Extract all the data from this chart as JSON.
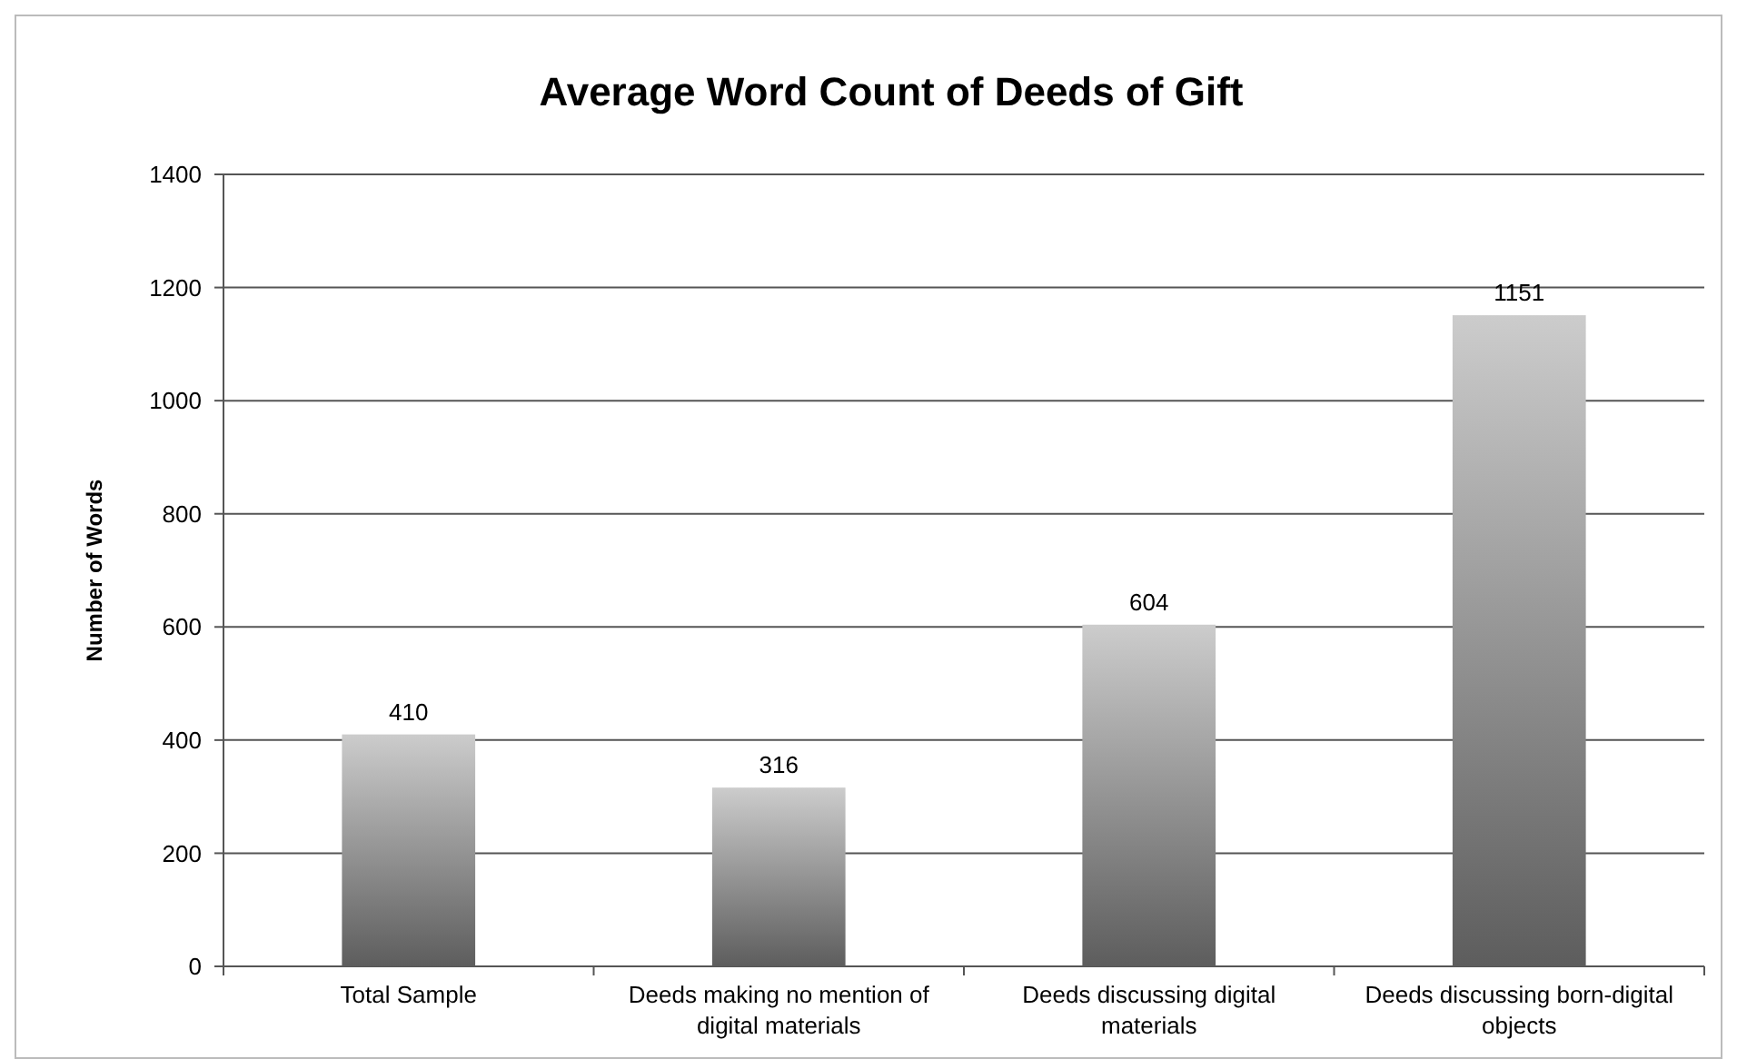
{
  "chart_data": {
    "type": "bar",
    "title": "Average Word Count of Deeds of Gift",
    "ylabel": "Number of Words",
    "categories": [
      "Total Sample",
      "Deeds making no mention of digital materials",
      "Deeds discussing digital materials",
      "Deeds discussing born-digital objects"
    ],
    "values": [
      410,
      316,
      604,
      1151
    ],
    "color": "#8a8a8a",
    "ylim": [
      0,
      1400
    ],
    "yticks": [
      0,
      200,
      400,
      600,
      800,
      1000,
      1200,
      1400
    ],
    "grid": "y",
    "data_labels": true
  }
}
